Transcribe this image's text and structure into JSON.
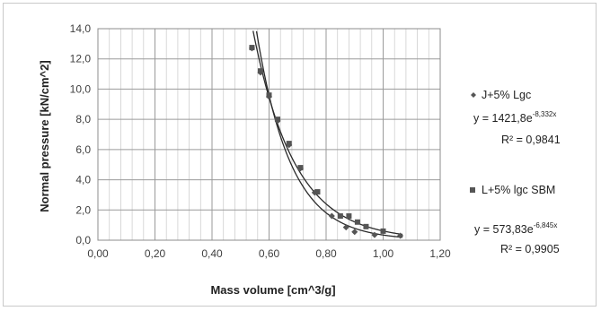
{
  "chart_data": {
    "type": "scatter",
    "xlabel": "Mass volume [cm^3/g]",
    "ylabel": "Normal pressure [kN/cm^2]",
    "xlim": [
      0.0,
      1.2
    ],
    "ylim": [
      0.0,
      14.0
    ],
    "x_ticks": [
      "0,00",
      "0,20",
      "0,40",
      "0,60",
      "0,80",
      "1,00",
      "1,20"
    ],
    "y_ticks": [
      "0,0",
      "2,0",
      "4,0",
      "6,0",
      "8,0",
      "10,0",
      "12,0",
      "14,0"
    ],
    "grid": true,
    "legend_position": "right",
    "series": [
      {
        "name": "J+5% Lgc",
        "marker": "diamond",
        "color": "#555555",
        "points": [
          {
            "x": 0.54,
            "y": 12.7
          },
          {
            "x": 0.57,
            "y": 11.1
          },
          {
            "x": 0.6,
            "y": 9.5
          },
          {
            "x": 0.63,
            "y": 7.9
          },
          {
            "x": 0.67,
            "y": 6.3
          },
          {
            "x": 0.71,
            "y": 4.75
          },
          {
            "x": 0.76,
            "y": 3.15
          },
          {
            "x": 0.82,
            "y": 1.6
          },
          {
            "x": 0.87,
            "y": 0.85
          },
          {
            "x": 0.9,
            "y": 0.55
          },
          {
            "x": 0.97,
            "y": 0.35
          },
          {
            "x": 1.06,
            "y": 0.3
          }
        ],
        "trendline": {
          "a": 1421.8,
          "b": -8.332
        },
        "equation_base": "y = 1421,8e",
        "equation_exp": "-8,332x",
        "r2": "R² = 0,9841"
      },
      {
        "name": "L+5% lgc SBM",
        "marker": "square",
        "color": "#555555",
        "points": [
          {
            "x": 0.54,
            "y": 12.75
          },
          {
            "x": 0.57,
            "y": 11.2
          },
          {
            "x": 0.6,
            "y": 9.6
          },
          {
            "x": 0.63,
            "y": 8.0
          },
          {
            "x": 0.67,
            "y": 6.4
          },
          {
            "x": 0.71,
            "y": 4.8
          },
          {
            "x": 0.77,
            "y": 3.2
          },
          {
            "x": 0.85,
            "y": 1.6
          },
          {
            "x": 0.88,
            "y": 1.6
          },
          {
            "x": 0.91,
            "y": 1.2
          },
          {
            "x": 0.94,
            "y": 0.9
          },
          {
            "x": 1.0,
            "y": 0.6
          }
        ],
        "trendline": {
          "a": 573.83,
          "b": -6.845
        },
        "equation_base": "y = 573,83e",
        "equation_exp": "-6,845x",
        "r2": "R² = 0,9905"
      }
    ]
  }
}
